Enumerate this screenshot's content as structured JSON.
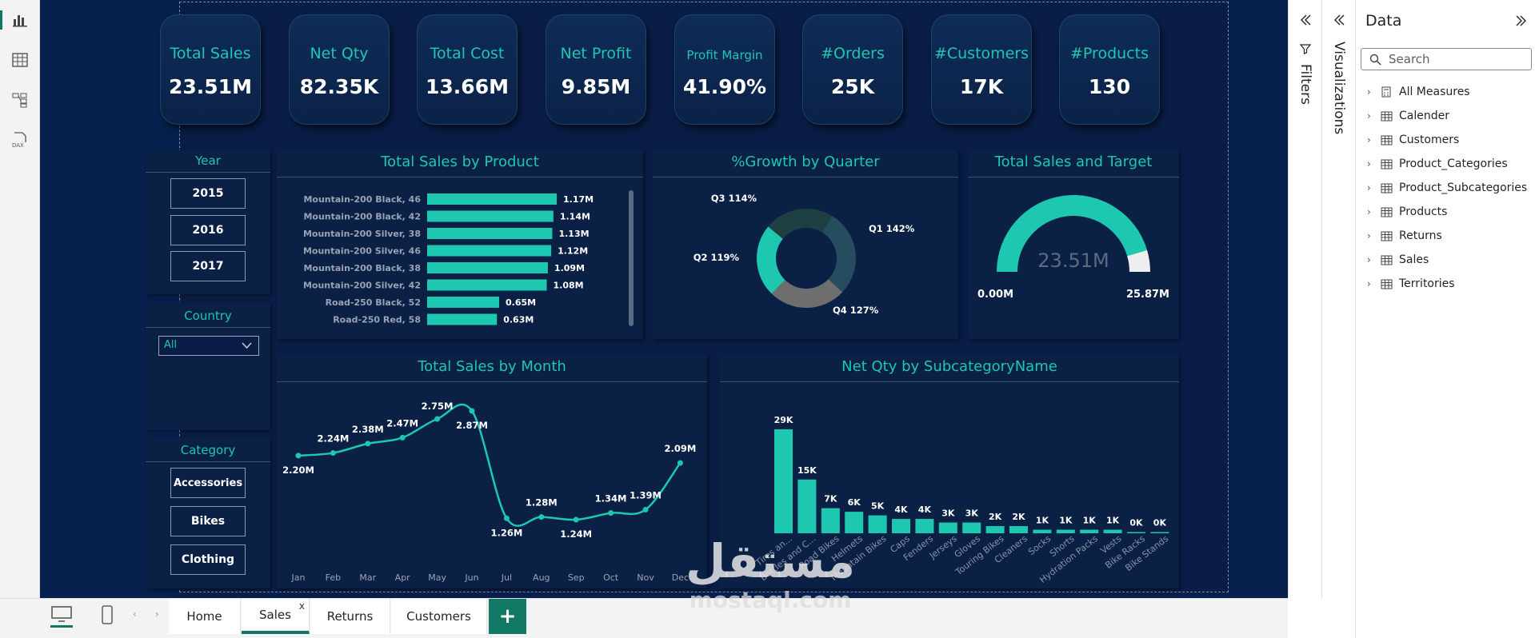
{
  "kpis": [
    {
      "label": "Total Sales",
      "value": "23.51M"
    },
    {
      "label": "Net Qty",
      "value": "82.35K"
    },
    {
      "label": "Total Cost",
      "value": "13.66M"
    },
    {
      "label": "Net Profit",
      "value": "9.85M"
    },
    {
      "label": "Profit Margin",
      "value": "41.90%"
    },
    {
      "label": "#Orders",
      "value": "25K"
    },
    {
      "label": "#Customers",
      "value": "17K"
    },
    {
      "label": "#Products",
      "value": "130"
    }
  ],
  "slicers": {
    "year": {
      "title": "Year",
      "options": [
        "2015",
        "2016",
        "2017"
      ]
    },
    "country": {
      "title": "Country",
      "value": "All"
    },
    "category": {
      "title": "Category",
      "options": [
        "Accessories",
        "Bikes",
        "Clothing"
      ]
    }
  },
  "colors": {
    "accent": "#1ec7b0",
    "background": "#0a1d46",
    "powerbi_green": "#117865"
  },
  "chart_data": [
    {
      "type": "bar",
      "orientation": "horizontal",
      "title": "Total Sales by Product",
      "categories": [
        "Mountain-200 Black, 46",
        "Mountain-200 Black, 42",
        "Mountain-200 Silver, 38",
        "Mountain-200 Silver, 46",
        "Mountain-200 Black, 38",
        "Mountain-200 Silver, 42",
        "Road-250 Black, 52",
        "Road-250 Red, 58"
      ],
      "values": [
        1.17,
        1.14,
        1.13,
        1.12,
        1.09,
        1.08,
        0.65,
        0.63
      ],
      "value_labels": [
        "1.17M",
        "1.14M",
        "1.13M",
        "1.12M",
        "1.09M",
        "1.08M",
        "0.65M",
        "0.63M"
      ]
    },
    {
      "type": "pie",
      "donut": true,
      "title": "%Growth by Quarter",
      "labels": [
        "Q1 142%",
        "Q4 127%",
        "Q2 119%",
        "Q3 114%"
      ],
      "values": [
        142,
        127,
        119,
        114
      ],
      "colors": [
        "#264d5f",
        "#6e6e6e",
        "#1ec7b0",
        "#1e4042"
      ]
    },
    {
      "type": "gauge",
      "title": "Total Sales and Target",
      "value": 23.51,
      "min": 0,
      "max": 25.87,
      "value_label": "23.51M",
      "min_label": "0.00M",
      "max_label": "25.87M"
    },
    {
      "type": "line",
      "title": "Total Sales by Month",
      "categories": [
        "Jan",
        "Feb",
        "Mar",
        "Apr",
        "May",
        "Jun",
        "Jul",
        "Aug",
        "Sep",
        "Oct",
        "Nov",
        "Dec"
      ],
      "values": [
        2.2,
        2.24,
        2.38,
        2.47,
        2.75,
        2.87,
        1.26,
        1.28,
        1.24,
        1.34,
        1.39,
        2.09
      ],
      "value_labels": [
        "2.20M",
        "2.24M",
        "2.38M",
        "2.47M",
        "2.75M",
        "2.87M",
        "1.26M",
        "1.28M",
        "1.24M",
        "1.34M",
        "1.39M",
        "2.09M"
      ]
    },
    {
      "type": "bar",
      "title": "Net Qty by SubcategoryName",
      "categories": [
        "Tires and Tubes",
        "Bottles and Cages",
        "Road Bikes",
        "Helmets",
        "Mountain Bikes",
        "Caps",
        "Fenders",
        "Jerseys",
        "Gloves",
        "Touring Bikes",
        "Cleaners",
        "Socks",
        "Shorts",
        "Hydration Packs",
        "Vests",
        "Bike Racks",
        "Bike Stands"
      ],
      "display_categories": [
        "Tires an...",
        "Bottles and C...",
        "Road Bikes",
        "Helmets",
        "Mountain Bikes",
        "Caps",
        "Fenders",
        "Jerseys",
        "Gloves",
        "Touring Bikes",
        "Cleaners",
        "Socks",
        "Shorts",
        "Hydration Packs",
        "Vests",
        "Bike Racks",
        "Bike Stands"
      ],
      "values": [
        29,
        15,
        7,
        6,
        5,
        4,
        4,
        3,
        3,
        2,
        2,
        1,
        1,
        1,
        1,
        0,
        0
      ],
      "value_labels": [
        "29K",
        "15K",
        "7K",
        "6K",
        "5K",
        "4K",
        "4K",
        "3K",
        "3K",
        "2K",
        "2K",
        "1K",
        "1K",
        "1K",
        "1K",
        "0K",
        "0K"
      ]
    }
  ],
  "panes": {
    "filters": "Filters",
    "visualizations": "Visualizations",
    "data": {
      "title": "Data",
      "search_placeholder": "Search",
      "items": [
        {
          "label": "All Measures",
          "icon": "calculator-icon"
        },
        {
          "label": "Calender",
          "icon": "calendar-table-icon"
        },
        {
          "label": "Customers",
          "icon": "table-icon"
        },
        {
          "label": "Product_Categories",
          "icon": "table-icon"
        },
        {
          "label": "Product_Subcategories",
          "icon": "table-icon"
        },
        {
          "label": "Products",
          "icon": "table-icon"
        },
        {
          "label": "Returns",
          "icon": "table-icon"
        },
        {
          "label": "Sales",
          "icon": "table-icon"
        },
        {
          "label": "Territories",
          "icon": "table-icon"
        }
      ]
    }
  },
  "page_tabs": [
    "Home",
    "Sales",
    "Returns",
    "Customers"
  ],
  "active_tab": "Sales",
  "watermark": {
    "text_ar": "مستقل",
    "text_en": "mostaql.com"
  }
}
